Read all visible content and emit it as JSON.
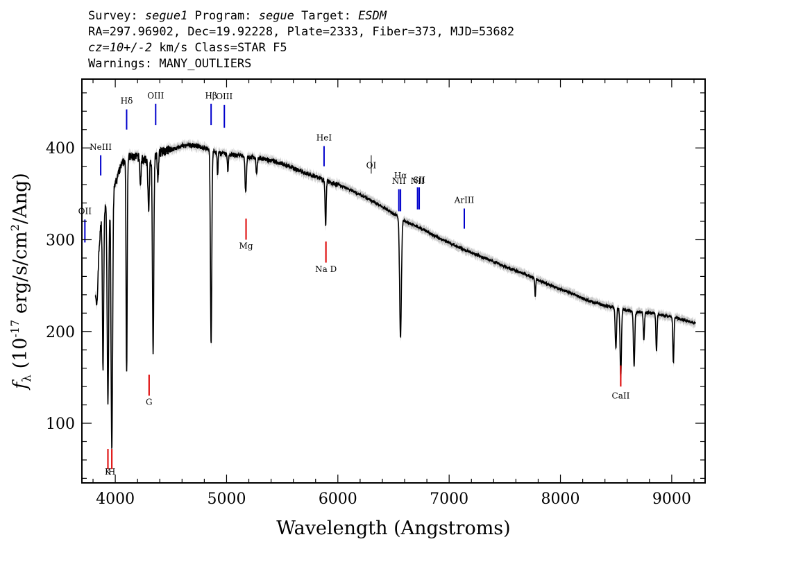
{
  "header": {
    "line1": {
      "survey_label": "Survey:",
      "survey": "segue1",
      "program_label": "Program:",
      "program": "segue",
      "target_label": "Target:",
      "target": "ESDM"
    },
    "line2": "RA=297.96902, Dec=19.92228, Plate=2333, Fiber=373, MJD=53682",
    "line3": {
      "cz": "cz=10+/-2",
      "rest": " km/s Class=STAR F5"
    },
    "line4": "Warnings: MANY_OUTLIERS"
  },
  "chart_data": {
    "type": "line",
    "xlabel": "Wavelength (Angstroms)",
    "ylabel": {
      "f": "f",
      "sub": "λ",
      "pre": " (10",
      "exp": "-17",
      "mid": " erg/s/cm",
      "exp2": "2",
      "post": "/Ang)"
    },
    "xlim": [
      3700,
      9300
    ],
    "ylim": [
      35,
      475
    ],
    "x_ticks": [
      4000,
      5000,
      6000,
      7000,
      8000,
      9000
    ],
    "y_ticks": [
      100,
      200,
      300,
      400
    ],
    "x_tick_labels": [
      "4000",
      "5000",
      "6000",
      "7000",
      "8000",
      "9000"
    ],
    "y_tick_labels": [
      "100",
      "200",
      "300",
      "400"
    ],
    "grid": false,
    "colors": {
      "flux": "#000000",
      "error": "#bbbbbb",
      "emission": "#0000cc",
      "absorption": "#dd0000"
    },
    "continuum_points": [
      [
        3820,
        250
      ],
      [
        3850,
        285
      ],
      [
        3880,
        330
      ],
      [
        3920,
        340
      ],
      [
        3960,
        350
      ],
      [
        4000,
        360
      ],
      [
        4050,
        380
      ],
      [
        4100,
        390
      ],
      [
        4200,
        390
      ],
      [
        4300,
        385
      ],
      [
        4400,
        395
      ],
      [
        4500,
        398
      ],
      [
        4600,
        402
      ],
      [
        4700,
        403
      ],
      [
        4800,
        400
      ],
      [
        4900,
        395
      ],
      [
        5000,
        393
      ],
      [
        5100,
        392
      ],
      [
        5200,
        390
      ],
      [
        5300,
        389
      ],
      [
        5400,
        386
      ],
      [
        5500,
        383
      ],
      [
        5600,
        378
      ],
      [
        5700,
        373
      ],
      [
        5800,
        369
      ],
      [
        5900,
        364
      ],
      [
        6000,
        360
      ],
      [
        6100,
        355
      ],
      [
        6200,
        349
      ],
      [
        6300,
        343
      ],
      [
        6400,
        336
      ],
      [
        6500,
        328
      ],
      [
        6560,
        325
      ],
      [
        6600,
        320
      ],
      [
        6700,
        315
      ],
      [
        6800,
        309
      ],
      [
        6900,
        302
      ],
      [
        7000,
        297
      ],
      [
        7100,
        291
      ],
      [
        7200,
        286
      ],
      [
        7300,
        281
      ],
      [
        7400,
        276
      ],
      [
        7500,
        271
      ],
      [
        7600,
        266
      ],
      [
        7700,
        262
      ],
      [
        7800,
        256
      ],
      [
        7900,
        251
      ],
      [
        8000,
        246
      ],
      [
        8100,
        242
      ],
      [
        8200,
        236
      ],
      [
        8300,
        232
      ],
      [
        8400,
        228
      ],
      [
        8500,
        226
      ],
      [
        8600,
        223
      ],
      [
        8700,
        221
      ],
      [
        8800,
        220
      ],
      [
        8900,
        218
      ],
      [
        9000,
        216
      ],
      [
        9100,
        213
      ],
      [
        9200,
        209
      ]
    ],
    "absorption_features": [
      [
        3835,
        40,
        8
      ],
      [
        3890,
        170,
        6
      ],
      [
        3934,
        220,
        7
      ],
      [
        3969,
        280,
        7
      ],
      [
        4102,
        235,
        5
      ],
      [
        4226,
        30,
        5
      ],
      [
        4300,
        55,
        6
      ],
      [
        4340,
        210,
        6
      ],
      [
        4383,
        30,
        5
      ],
      [
        4861,
        210,
        6
      ],
      [
        4920,
        25,
        4
      ],
      [
        5012,
        20,
        4
      ],
      [
        5172,
        40,
        6
      ],
      [
        5270,
        18,
        5
      ],
      [
        5890,
        50,
        5
      ],
      [
        6563,
        130,
        8
      ],
      [
        7774,
        20,
        4
      ],
      [
        8498,
        45,
        6
      ],
      [
        8542,
        75,
        6
      ],
      [
        8662,
        60,
        6
      ],
      [
        8750,
        30,
        5
      ],
      [
        8863,
        40,
        5
      ],
      [
        9015,
        50,
        5
      ]
    ],
    "line_markers": [
      {
        "label": "OII",
        "x": 3727,
        "y0": 297,
        "y1": 322,
        "color": "emission",
        "ly": 328
      },
      {
        "label": "NeIII",
        "x": 3869,
        "y0": 370,
        "y1": 392,
        "color": "emission",
        "ly": 398
      },
      {
        "label": "Hδ",
        "x": 4102,
        "y0": 420,
        "y1": 442,
        "color": "emission",
        "ly": 448
      },
      {
        "label": "OIII",
        "x": 4363,
        "y0": 425,
        "y1": 448,
        "color": "emission",
        "ly": 454
      },
      {
        "label": "Hβ",
        "x": 4861,
        "y0": 425,
        "y1": 448,
        "color": "emission",
        "ly": 454
      },
      {
        "label": "OIII",
        "x": 4980,
        "y0": 422,
        "y1": 447,
        "color": "emission",
        "ly": 453
      },
      {
        "label": "HeI",
        "x": 5876,
        "y0": 380,
        "y1": 402,
        "color": "emission",
        "ly": 408
      },
      {
        "label": "OI",
        "x": 6300,
        "y0": 372,
        "y1": 372,
        "color": "emission",
        "ly": 378
      },
      {
        "label": "NII",
        "x": 6548,
        "y0": 331,
        "y1": 355,
        "color": "emission",
        "ly": 361
      },
      {
        "label": "Hα",
        "x": 6563,
        "y0": 331,
        "y1": 355,
        "color": "emission",
        "ly": 367
      },
      {
        "label": "NII",
        "x": 6716,
        "y0": 333,
        "y1": 357,
        "color": "emission",
        "ly": 361
      },
      {
        "label": "SII",
        "x": 6731,
        "y0": 333,
        "y1": 357,
        "color": "emission",
        "ly": 362
      },
      {
        "label": "ArIII",
        "x": 7136,
        "y0": 312,
        "y1": 334,
        "color": "emission",
        "ly": 340
      },
      {
        "label": "K",
        "x": 3934,
        "y0": 50,
        "y1": 72,
        "color": "absorption",
        "ly": 44
      },
      {
        "label": "H",
        "x": 3969,
        "y0": 50,
        "y1": 72,
        "color": "absorption",
        "ly": 44
      },
      {
        "label": "G",
        "x": 4304,
        "y0": 130,
        "y1": 153,
        "color": "absorption",
        "ly": 120
      },
      {
        "label": "Mg",
        "x": 5175,
        "y0": 300,
        "y1": 323,
        "color": "absorption",
        "ly": 290
      },
      {
        "label": "Na D",
        "x": 5893,
        "y0": 275,
        "y1": 298,
        "color": "absorption",
        "ly": 265
      },
      {
        "label": "CaII",
        "x": 8542,
        "y0": 140,
        "y1": 163,
        "color": "absorption",
        "ly": 127
      }
    ]
  }
}
